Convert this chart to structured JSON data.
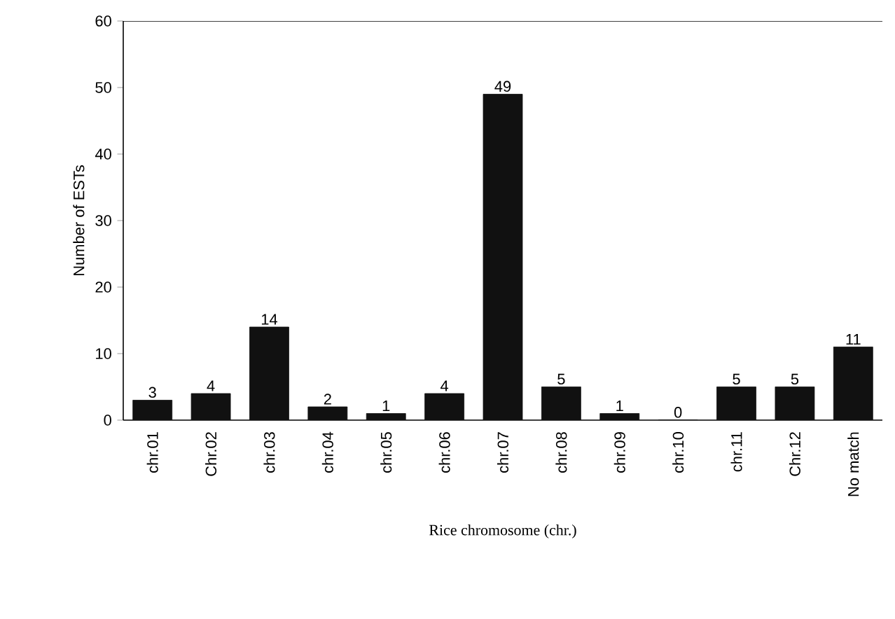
{
  "chart_data": {
    "type": "bar",
    "xlabel": "Rice chromosome (chr.)",
    "ylabel": "Number of ESTs",
    "categories": [
      "chr.01",
      "Chr.02",
      "chr.03",
      "chr.04",
      "chr.05",
      "chr.06",
      "chr.07",
      "chr.08",
      "chr.09",
      "chr.10",
      "chr.11",
      "Chr.12",
      "No match"
    ],
    "values": [
      3,
      4,
      14,
      2,
      1,
      4,
      49,
      5,
      1,
      0,
      5,
      5,
      11
    ],
    "color": "#111111",
    "ylim": [
      0,
      60
    ],
    "yticks": [
      0,
      10,
      20,
      30,
      40,
      50,
      60
    ],
    "data_labels": true,
    "grid": false
  }
}
